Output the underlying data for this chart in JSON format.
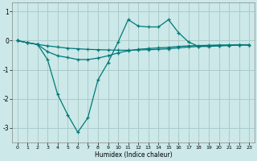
{
  "xlabel": "Humidex (Indice chaleur)",
  "bg_color": "#cce8e8",
  "grid_color": "#aacccc",
  "line_color": "#007878",
  "xlim": [
    -0.5,
    23.5
  ],
  "ylim": [
    -3.5,
    1.3
  ],
  "yticks": [
    -3,
    -2,
    -1,
    0,
    1
  ],
  "xticks": [
    0,
    1,
    2,
    3,
    4,
    5,
    6,
    7,
    8,
    9,
    10,
    11,
    12,
    13,
    14,
    15,
    16,
    17,
    18,
    19,
    20,
    21,
    22,
    23
  ],
  "series_a_x": [
    0,
    1,
    2,
    3,
    4,
    5,
    6,
    7,
    8,
    9,
    10,
    11,
    12,
    13,
    14,
    15,
    16,
    17,
    18,
    19,
    20,
    21,
    22,
    23
  ],
  "series_a_y": [
    0.0,
    -0.07,
    -0.13,
    -0.18,
    -0.22,
    -0.26,
    -0.28,
    -0.3,
    -0.31,
    -0.32,
    -0.33,
    -0.33,
    -0.32,
    -0.31,
    -0.3,
    -0.28,
    -0.25,
    -0.22,
    -0.2,
    -0.18,
    -0.17,
    -0.16,
    -0.15,
    -0.15
  ],
  "series_b_x": [
    0,
    1,
    2,
    3,
    4,
    5,
    6,
    7,
    8,
    9,
    10,
    11,
    12,
    13,
    14,
    15,
    16,
    17,
    18,
    19,
    20,
    21,
    22,
    23
  ],
  "series_b_y": [
    0.0,
    -0.07,
    -0.13,
    -0.65,
    -1.85,
    -2.55,
    -3.15,
    -2.65,
    -1.35,
    -0.75,
    -0.05,
    0.72,
    0.5,
    0.47,
    0.47,
    0.72,
    0.27,
    -0.05,
    -0.2,
    -0.2,
    -0.18,
    -0.17,
    -0.15,
    -0.15
  ],
  "series_c_x": [
    0,
    1,
    2,
    3,
    4,
    5,
    6,
    7,
    8,
    9,
    10,
    11,
    12,
    13,
    14,
    15,
    16,
    17,
    18,
    19,
    20,
    21,
    22,
    23
  ],
  "series_c_y": [
    0.0,
    -0.07,
    -0.13,
    -0.38,
    -0.52,
    -0.58,
    -0.65,
    -0.65,
    -0.6,
    -0.52,
    -0.42,
    -0.35,
    -0.3,
    -0.27,
    -0.25,
    -0.23,
    -0.2,
    -0.18,
    -0.17,
    -0.16,
    -0.15,
    -0.15,
    -0.14,
    -0.14
  ]
}
